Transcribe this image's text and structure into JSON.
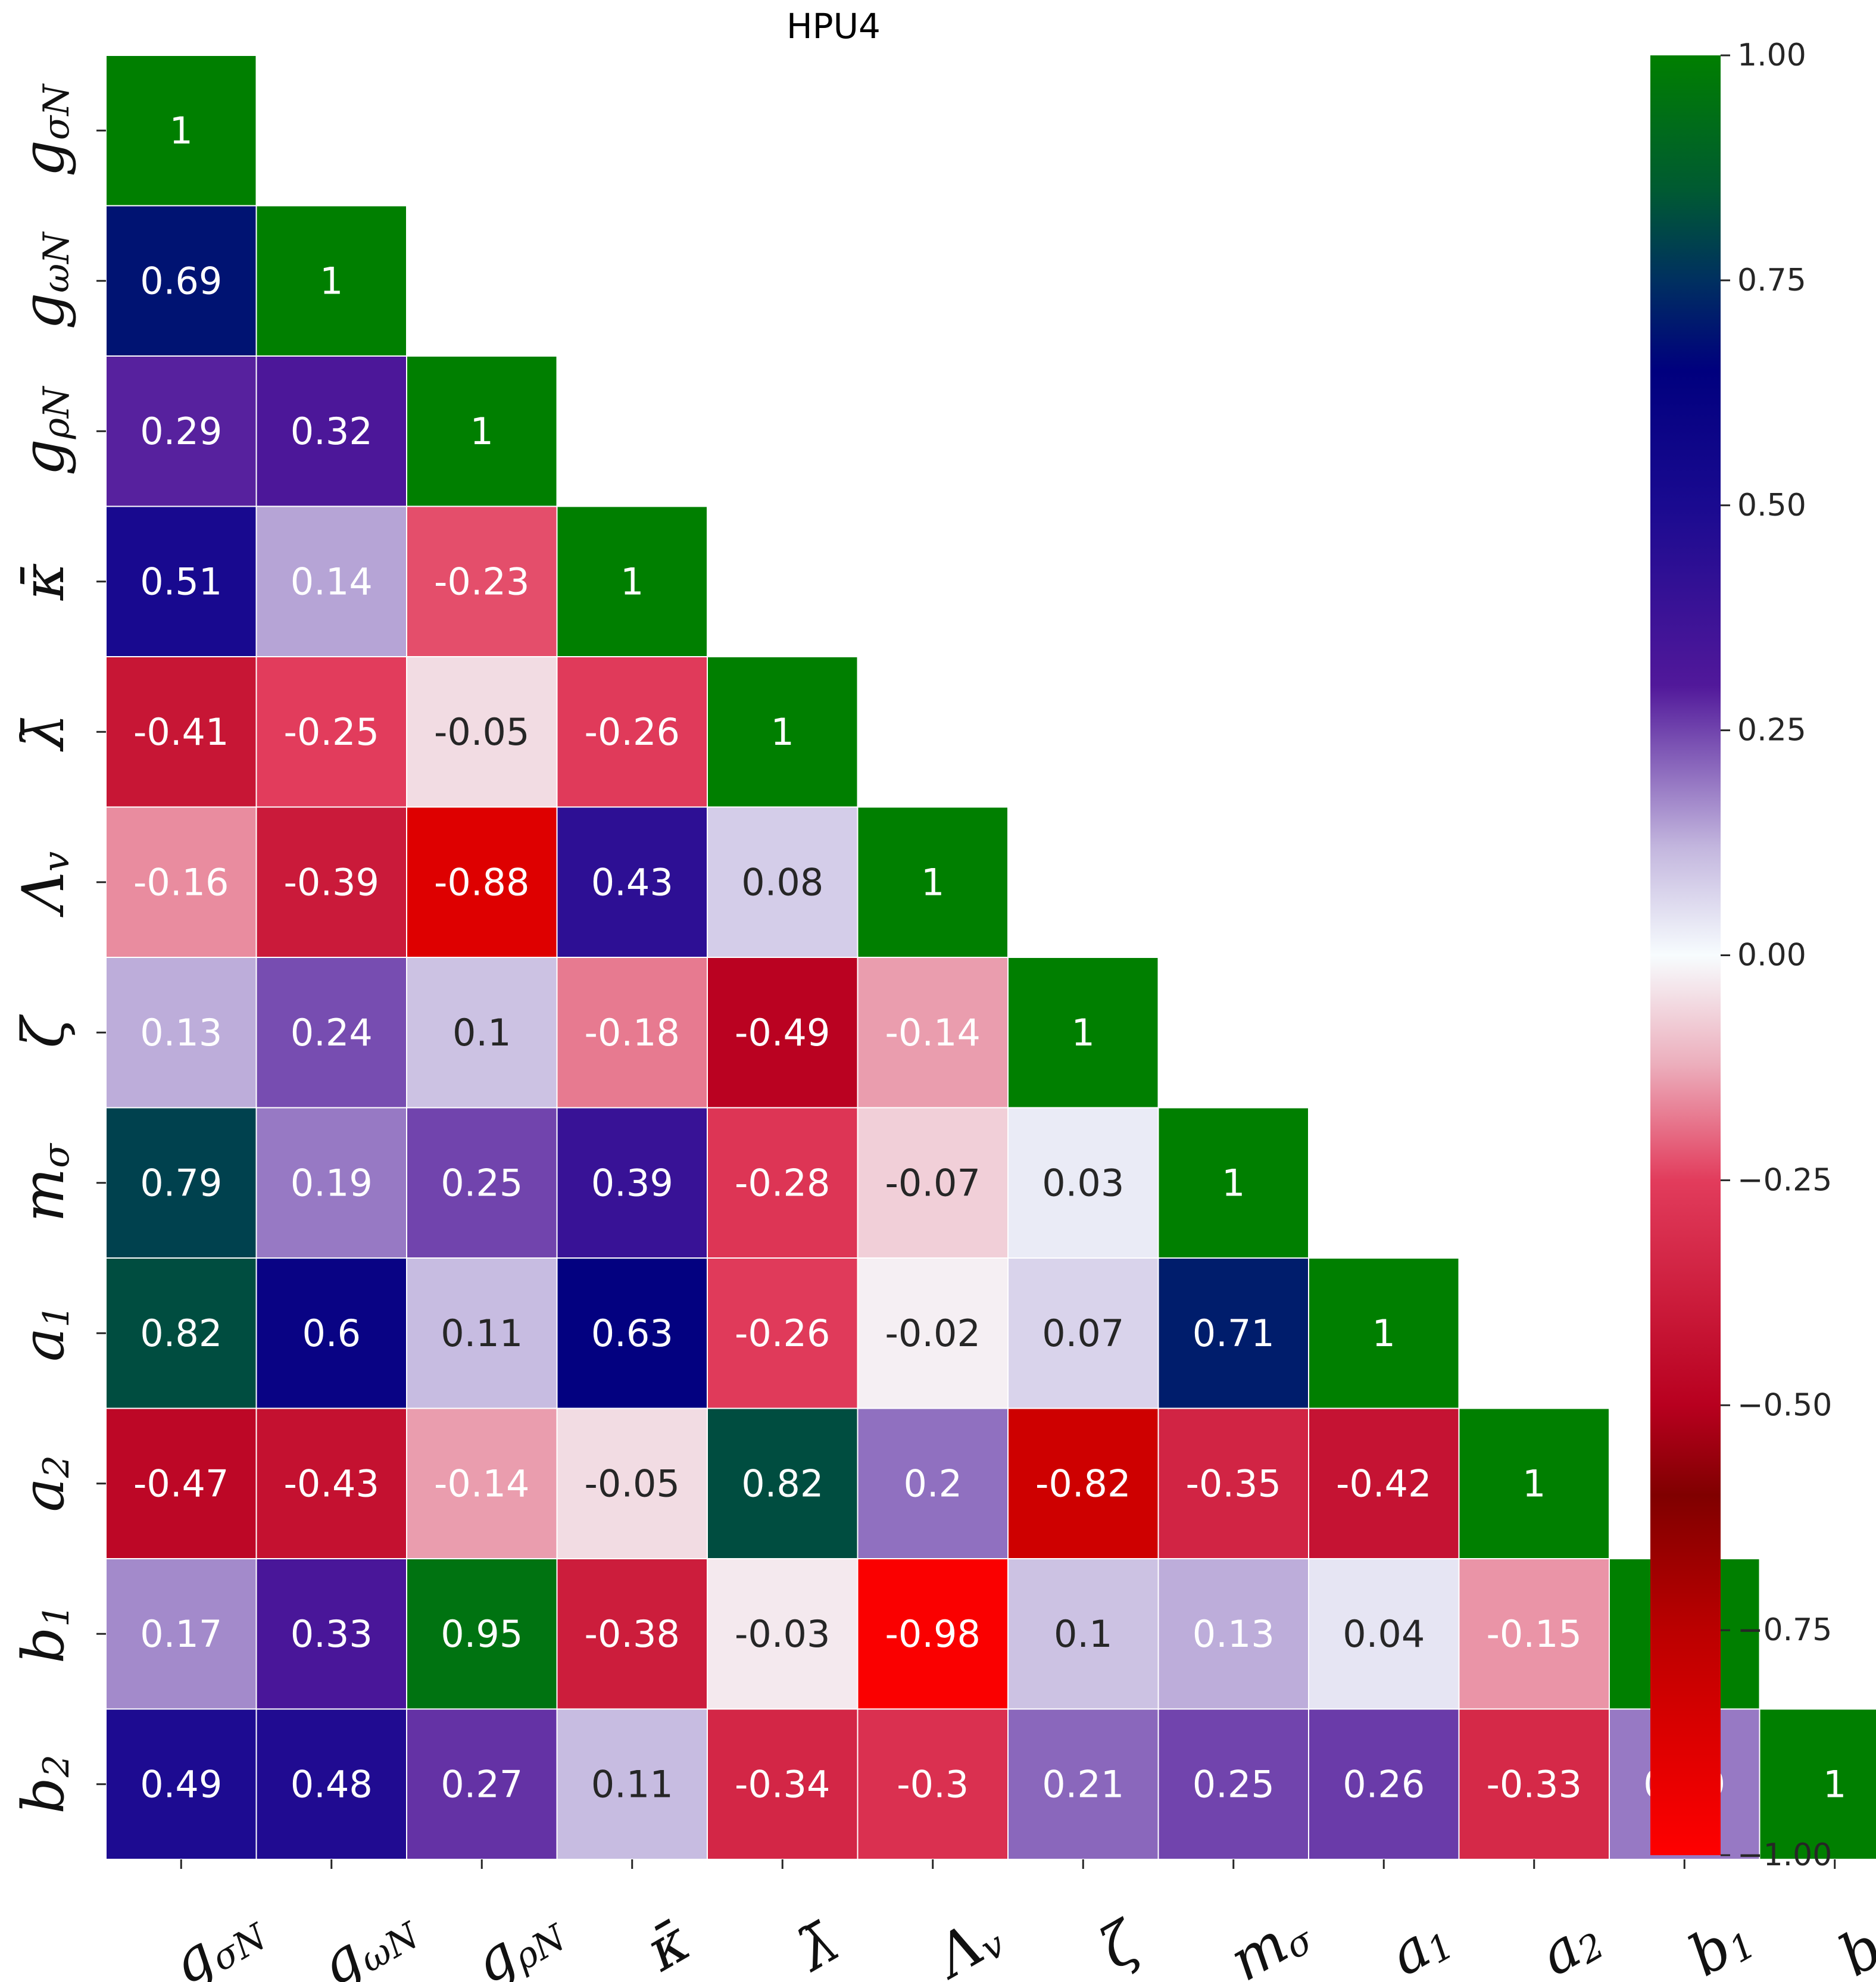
{
  "chart_data": {
    "type": "heatmap",
    "title": "HPU4",
    "variables": [
      "g_σN",
      "g_ωN",
      "g_ρN",
      "κ̄",
      "λ̄",
      "Λ_v",
      "ζ",
      "m_σ",
      "a_1",
      "a_2",
      "b_1",
      "b_2"
    ],
    "matrix": [
      [
        1
      ],
      [
        0.69,
        1
      ],
      [
        0.29,
        0.32,
        1
      ],
      [
        0.51,
        0.14,
        -0.23,
        1
      ],
      [
        -0.41,
        -0.25,
        -0.05,
        -0.26,
        1
      ],
      [
        -0.16,
        -0.39,
        -0.88,
        0.43,
        0.08,
        1
      ],
      [
        0.13,
        0.24,
        0.1,
        -0.18,
        -0.49,
        -0.14,
        1
      ],
      [
        0.79,
        0.19,
        0.25,
        0.39,
        -0.28,
        -0.07,
        0.03,
        1
      ],
      [
        0.82,
        0.6,
        0.11,
        0.63,
        -0.26,
        -0.02,
        0.07,
        0.71,
        1
      ],
      [
        -0.47,
        -0.43,
        -0.14,
        -0.05,
        0.82,
        0.2,
        -0.82,
        -0.35,
        -0.42,
        1
      ],
      [
        0.17,
        0.33,
        0.95,
        -0.38,
        -0.03,
        -0.98,
        0.1,
        0.13,
        0.04,
        -0.15,
        1
      ],
      [
        0.49,
        0.48,
        0.27,
        0.11,
        -0.34,
        -0.3,
        0.21,
        0.25,
        0.26,
        -0.33,
        0.19,
        1
      ]
    ],
    "cell_labels": [
      [
        "1"
      ],
      [
        "0.69",
        "1"
      ],
      [
        "0.29",
        "0.32",
        "1"
      ],
      [
        "0.51",
        "0.14",
        "-0.23",
        "1"
      ],
      [
        "-0.41",
        "-0.25",
        "-0.05",
        "-0.26",
        "1"
      ],
      [
        "-0.16",
        "-0.39",
        "-0.88",
        "0.43",
        "0.08",
        "1"
      ],
      [
        "0.13",
        "0.24",
        "0.1",
        "-0.18",
        "-0.49",
        "-0.14",
        "1"
      ],
      [
        "0.79",
        "0.19",
        "0.25",
        "0.39",
        "-0.28",
        "-0.07",
        "0.03",
        "1"
      ],
      [
        "0.82",
        "0.6",
        "0.11",
        "0.63",
        "-0.26",
        "-0.02",
        "0.07",
        "0.71",
        "1"
      ],
      [
        "-0.47",
        "-0.43",
        "-0.14",
        "-0.05",
        "0.82",
        "0.2",
        "-0.82",
        "-0.35",
        "-0.42",
        "1"
      ],
      [
        "0.17",
        "0.33",
        "0.95",
        "-0.38",
        "-0.03",
        "-0.98",
        "0.1",
        "0.13",
        "0.04",
        "-0.15",
        "1"
      ],
      [
        "0.49",
        "0.48",
        "0.27",
        "0.11",
        "-0.34",
        "-0.3",
        "0.21",
        "0.25",
        "0.26",
        "-0.33",
        "0.19",
        "1"
      ]
    ],
    "mask": "upper-triangle",
    "colorbar": {
      "range": [
        -1,
        1
      ],
      "ticks": [
        1,
        0.75,
        0.5,
        0.25,
        0,
        -0.25,
        -0.5,
        -0.75,
        -1
      ],
      "tick_labels": [
        "1.00",
        "0.75",
        "0.50",
        "0.25",
        "0.00",
        "−0.25",
        "−0.50",
        "−0.75",
        "−1.00"
      ],
      "colormap_stops": [
        {
          "v": -1.0,
          "color": "#ff0000"
        },
        {
          "v": -0.75,
          "color": "#bb0000"
        },
        {
          "v": -0.6,
          "color": "#800000"
        },
        {
          "v": -0.5,
          "color": "#b8001f"
        },
        {
          "v": -0.25,
          "color": "#e23c5c"
        },
        {
          "v": -0.12,
          "color": "#ecafbd"
        },
        {
          "v": 0.0,
          "color": "#f7fcfe"
        },
        {
          "v": 0.12,
          "color": "#c3b6de"
        },
        {
          "v": 0.3,
          "color": "#51189a"
        },
        {
          "v": 0.5,
          "color": "#1a0a90"
        },
        {
          "v": 0.65,
          "color": "#00007e"
        },
        {
          "v": 0.75,
          "color": "#003060"
        },
        {
          "v": 0.85,
          "color": "#005a32"
        },
        {
          "v": 1.0,
          "color": "#007f00"
        }
      ]
    },
    "grid": false
  }
}
